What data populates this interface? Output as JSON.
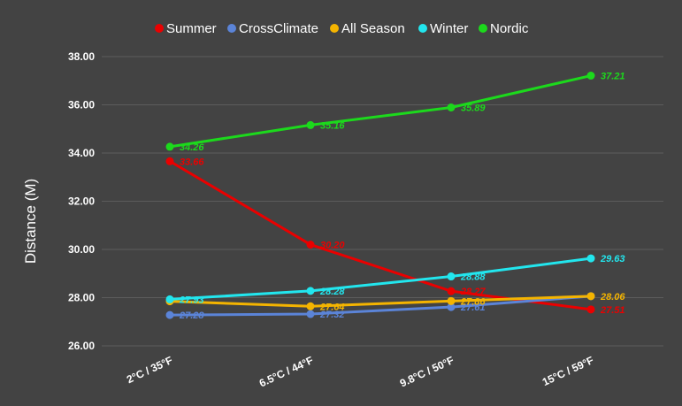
{
  "chart_data": {
    "type": "line",
    "title": "",
    "xlabel": "",
    "ylabel": "Distance (M)",
    "ylim": [
      26,
      38
    ],
    "yticks": [
      "26.00",
      "28.00",
      "30.00",
      "32.00",
      "34.00",
      "36.00",
      "38.00"
    ],
    "categories": [
      "2°C / 35°F",
      "6.5°C / 44°F",
      "9.8°C / 50°F",
      "15°C / 59°F"
    ],
    "grid": true,
    "legend_position": "top",
    "series": [
      {
        "name": "Summer",
        "color": "#ea0000",
        "values": [
          33.66,
          30.2,
          28.27,
          27.51
        ],
        "labels": [
          "33.66",
          "30.20",
          "28.27",
          "27.51"
        ]
      },
      {
        "name": "CrossClimate",
        "color": "#5b84d8",
        "values": [
          27.28,
          27.32,
          27.61,
          28.06
        ],
        "labels": [
          "27.28",
          "27.32",
          "27.61",
          ""
        ]
      },
      {
        "name": "All Season",
        "color": "#f4b400",
        "values": [
          27.85,
          27.64,
          27.86,
          28.06
        ],
        "labels": [
          "",
          "27.64",
          "27.86",
          "28.06"
        ]
      },
      {
        "name": "Winter",
        "color": "#22e6ee",
        "values": [
          27.93,
          28.28,
          28.88,
          29.63
        ],
        "labels": [
          "27.93",
          "28.28",
          "28.88",
          "29.63"
        ]
      },
      {
        "name": "Nordic",
        "color": "#1cd91c",
        "values": [
          34.26,
          35.16,
          35.89,
          37.21
        ],
        "labels": [
          "34.26",
          "35.16",
          "35.89",
          "37.21"
        ]
      }
    ]
  }
}
